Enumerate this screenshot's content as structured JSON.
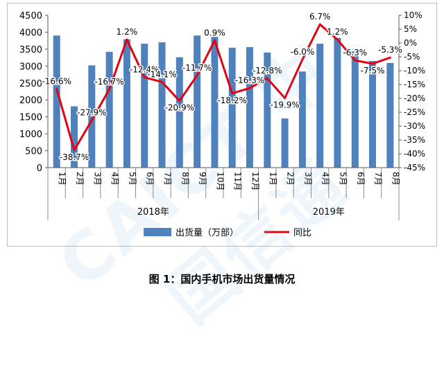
{
  "chart_data": {
    "type": "bar",
    "categories": [
      "1月",
      "2月",
      "3月",
      "4月",
      "5月",
      "6月",
      "7月",
      "8月",
      "9月",
      "10月",
      "11月",
      "12月",
      "1月",
      "2月",
      "3月",
      "4月",
      "5月",
      "6月",
      "7月",
      "8月"
    ],
    "groups": [
      {
        "label": "2018年",
        "count": 12
      },
      {
        "label": "2019年",
        "count": 8
      }
    ],
    "series": [
      {
        "name": "出货量（万部）",
        "type": "bar",
        "axis": "left",
        "color": "#4F81BD",
        "values": [
          3900,
          1810,
          3020,
          3420,
          3790,
          3660,
          3700,
          3260,
          3900,
          3860,
          3540,
          3560,
          3400,
          1450,
          2840,
          3660,
          3830,
          3430,
          3150,
          3090
        ]
      },
      {
        "name": "同比",
        "type": "line",
        "axis": "right",
        "color": "#E3000F",
        "values": [
          -16.6,
          -38.7,
          -27.9,
          -16.7,
          1.2,
          -12.4,
          -14.1,
          -20.9,
          -11.7,
          0.9,
          -18.2,
          -16.3,
          -12.8,
          -19.9,
          -6.0,
          6.7,
          1.2,
          -6.3,
          -7.5,
          -5.3
        ],
        "labels": [
          "-16.6%",
          "-38.7%",
          "-27.9%",
          "-16.7%",
          "1.2%",
          "-12.4%",
          "-14.1%",
          "-20.9%",
          "-11.7%",
          "0.9%",
          "-18.2%",
          "-16.3%",
          "-12.8%",
          "-19.9%",
          "-6.0%",
          "6.7%",
          "1.2%",
          "-6.3%",
          "-7.5%",
          "-5.3%"
        ]
      }
    ],
    "y_left": {
      "min": 0,
      "max": 4500,
      "step": 500,
      "ticks": [
        "0",
        "500",
        "1000",
        "1500",
        "2000",
        "2500",
        "3000",
        "3500",
        "4000",
        "4500"
      ]
    },
    "y_right": {
      "min": -45,
      "max": 10,
      "step": 5,
      "ticks": [
        "-45%",
        "-40%",
        "-35%",
        "-30%",
        "-25%",
        "-20%",
        "-15%",
        "-10%",
        "-5%",
        "0%",
        "5%",
        "10%"
      ]
    },
    "legend": {
      "position": "bottom",
      "items": [
        "出货量（万部）",
        "同比"
      ]
    },
    "grid": false
  },
  "watermark": "CAICT 中国信通",
  "caption": "图 1：国内手机市场出货量情况"
}
